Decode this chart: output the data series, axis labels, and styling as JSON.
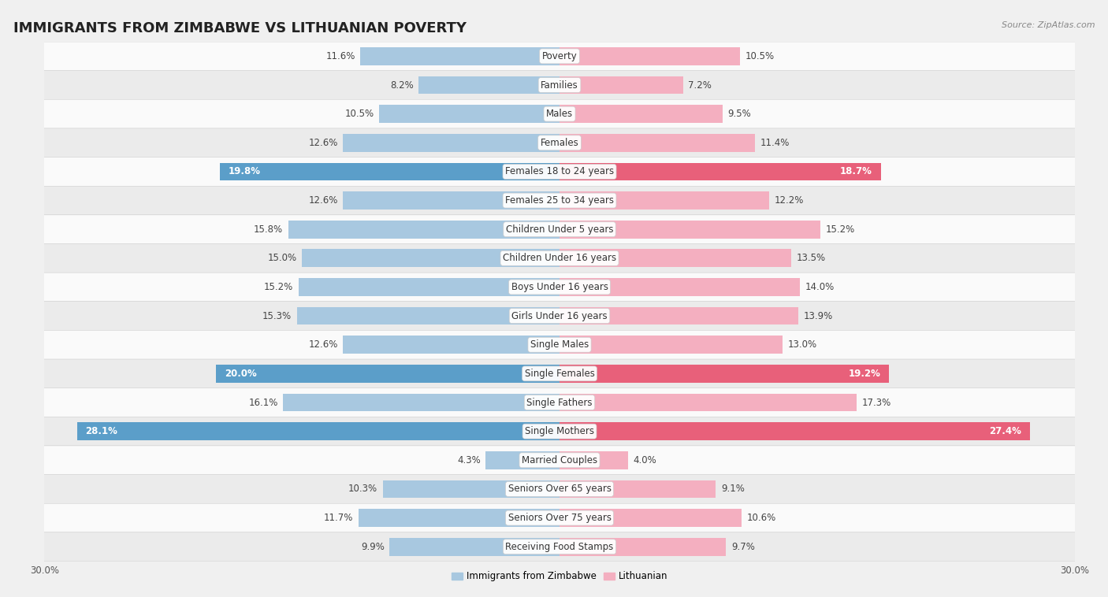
{
  "title": "IMMIGRANTS FROM ZIMBABWE VS LITHUANIAN POVERTY",
  "source": "Source: ZipAtlas.com",
  "categories": [
    "Poverty",
    "Families",
    "Males",
    "Females",
    "Females 18 to 24 years",
    "Females 25 to 34 years",
    "Children Under 5 years",
    "Children Under 16 years",
    "Boys Under 16 years",
    "Girls Under 16 years",
    "Single Males",
    "Single Females",
    "Single Fathers",
    "Single Mothers",
    "Married Couples",
    "Seniors Over 65 years",
    "Seniors Over 75 years",
    "Receiving Food Stamps"
  ],
  "zimbabwe_values": [
    11.6,
    8.2,
    10.5,
    12.6,
    19.8,
    12.6,
    15.8,
    15.0,
    15.2,
    15.3,
    12.6,
    20.0,
    16.1,
    28.1,
    4.3,
    10.3,
    11.7,
    9.9
  ],
  "lithuanian_values": [
    10.5,
    7.2,
    9.5,
    11.4,
    18.7,
    12.2,
    15.2,
    13.5,
    14.0,
    13.9,
    13.0,
    19.2,
    17.3,
    27.4,
    4.0,
    9.1,
    10.6,
    9.7
  ],
  "zimbabwe_color": "#a8c8e0",
  "lithuanian_color": "#f4afc0",
  "zimbabwe_highlight_color": "#5b9ec9",
  "lithuanian_highlight_color": "#e8607a",
  "highlight_rows": [
    4,
    11,
    13
  ],
  "bar_height": 0.62,
  "xlim": 30,
  "background_color": "#f0f0f0",
  "row_color_light": "#fafafa",
  "row_color_dark": "#ebebeb",
  "title_fontsize": 13,
  "label_fontsize": 8.5,
  "value_fontsize": 8.5,
  "tick_fontsize": 8.5,
  "legend_labels": [
    "Immigrants from Zimbabwe",
    "Lithuanian"
  ]
}
